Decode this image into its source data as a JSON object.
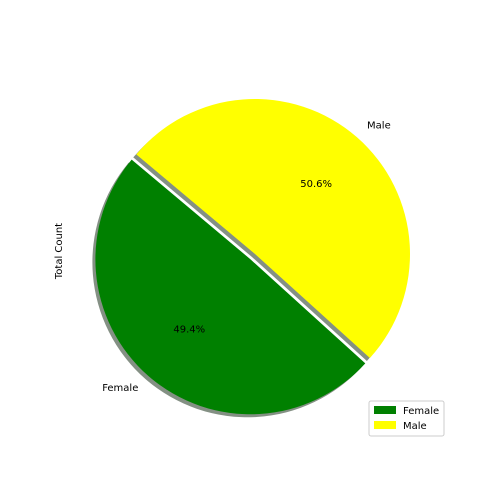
{
  "chart_data": {
    "type": "pie",
    "ylabel": "Total Count",
    "slices": [
      {
        "label": "Female",
        "value": 49.4,
        "pct_label": "49.4%",
        "color": "#008000",
        "explode": true
      },
      {
        "label": "Male",
        "value": 50.6,
        "pct_label": "50.6%",
        "color": "#ffff00",
        "explode": false
      }
    ],
    "shadow": true,
    "legend": {
      "position": "bottom-right",
      "entries": [
        {
          "label": "Female",
          "color": "#008000"
        },
        {
          "label": "Male",
          "color": "#ffff00"
        }
      ]
    }
  }
}
